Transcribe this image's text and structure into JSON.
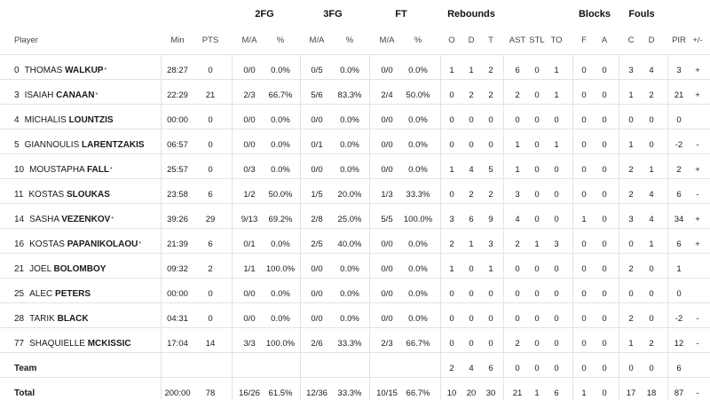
{
  "groups": [
    {
      "key": "g2fg",
      "label": "2FG"
    },
    {
      "key": "g3fg",
      "label": "3FG"
    },
    {
      "key": "gft",
      "label": "FT"
    },
    {
      "key": "greb",
      "label": "Rebounds"
    },
    {
      "key": "gblk",
      "label": "Blocks"
    },
    {
      "key": "gfoul",
      "label": "Fouls"
    }
  ],
  "columns": [
    "Player",
    "Min",
    "PTS",
    "M/A",
    "%",
    "M/A",
    "%",
    "M/A",
    "%",
    "O",
    "D",
    "T",
    "AST",
    "STL",
    "TO",
    "F",
    "A",
    "C",
    "D",
    "PIR",
    "+/-"
  ],
  "players": [
    {
      "num": "0",
      "first": "THOMAS",
      "last": "WALKUP",
      "starter": "*",
      "cells": [
        "28:27",
        "0",
        "0/0",
        "0.0%",
        "0/5",
        "0.0%",
        "0/0",
        "0.0%",
        "1",
        "1",
        "2",
        "6",
        "0",
        "1",
        "0",
        "0",
        "3",
        "4",
        "3",
        "+"
      ]
    },
    {
      "num": "3",
      "first": "ISAIAH",
      "last": "CANAAN",
      "starter": "*",
      "cells": [
        "22:29",
        "21",
        "2/3",
        "66.7%",
        "5/6",
        "83.3%",
        "2/4",
        "50.0%",
        "0",
        "2",
        "2",
        "2",
        "0",
        "1",
        "0",
        "0",
        "1",
        "2",
        "21",
        "+"
      ]
    },
    {
      "num": "4",
      "first": "MICHALIS",
      "last": "LOUNTZIS",
      "starter": "",
      "cells": [
        "00:00",
        "0",
        "0/0",
        "0.0%",
        "0/0",
        "0.0%",
        "0/0",
        "0.0%",
        "0",
        "0",
        "0",
        "0",
        "0",
        "0",
        "0",
        "0",
        "0",
        "0",
        "0",
        ""
      ]
    },
    {
      "num": "5",
      "first": "GIANNOULIS",
      "last": "LARENTZAKIS",
      "starter": "",
      "cells": [
        "06:57",
        "0",
        "0/0",
        "0.0%",
        "0/1",
        "0.0%",
        "0/0",
        "0.0%",
        "0",
        "0",
        "0",
        "1",
        "0",
        "1",
        "0",
        "0",
        "1",
        "0",
        "-2",
        "-"
      ]
    },
    {
      "num": "10",
      "first": "MOUSTAPHA",
      "last": "FALL",
      "starter": "*",
      "cells": [
        "25:57",
        "0",
        "0/3",
        "0.0%",
        "0/0",
        "0.0%",
        "0/0",
        "0.0%",
        "1",
        "4",
        "5",
        "1",
        "0",
        "0",
        "0",
        "0",
        "2",
        "1",
        "2",
        "+"
      ]
    },
    {
      "num": "11",
      "first": "KOSTAS",
      "last": "SLOUKAS",
      "starter": "",
      "cells": [
        "23:58",
        "6",
        "1/2",
        "50.0%",
        "1/5",
        "20.0%",
        "1/3",
        "33.3%",
        "0",
        "2",
        "2",
        "3",
        "0",
        "0",
        "0",
        "0",
        "2",
        "4",
        "6",
        "-"
      ]
    },
    {
      "num": "14",
      "first": "SASHA",
      "last": "VEZENKOV",
      "starter": "*",
      "cells": [
        "39:26",
        "29",
        "9/13",
        "69.2%",
        "2/8",
        "25.0%",
        "5/5",
        "100.0%",
        "3",
        "6",
        "9",
        "4",
        "0",
        "0",
        "1",
        "0",
        "3",
        "4",
        "34",
        "+"
      ]
    },
    {
      "num": "16",
      "first": "KOSTAS",
      "last": "PAPANIKOLAOU",
      "starter": "*",
      "cells": [
        "21:39",
        "6",
        "0/1",
        "0.0%",
        "2/5",
        "40.0%",
        "0/0",
        "0.0%",
        "2",
        "1",
        "3",
        "2",
        "1",
        "3",
        "0",
        "0",
        "0",
        "1",
        "6",
        "+"
      ]
    },
    {
      "num": "21",
      "first": "JOEL",
      "last": "BOLOMBOY",
      "starter": "",
      "cells": [
        "09:32",
        "2",
        "1/1",
        "100.0%",
        "0/0",
        "0.0%",
        "0/0",
        "0.0%",
        "1",
        "0",
        "1",
        "0",
        "0",
        "0",
        "0",
        "0",
        "2",
        "0",
        "1",
        ""
      ]
    },
    {
      "num": "25",
      "first": "ALEC",
      "last": "PETERS",
      "starter": "",
      "cells": [
        "00:00",
        "0",
        "0/0",
        "0.0%",
        "0/0",
        "0.0%",
        "0/0",
        "0.0%",
        "0",
        "0",
        "0",
        "0",
        "0",
        "0",
        "0",
        "0",
        "0",
        "0",
        "0",
        ""
      ]
    },
    {
      "num": "28",
      "first": "TARIK",
      "last": "BLACK",
      "starter": "",
      "cells": [
        "04:31",
        "0",
        "0/0",
        "0.0%",
        "0/0",
        "0.0%",
        "0/0",
        "0.0%",
        "0",
        "0",
        "0",
        "0",
        "0",
        "0",
        "0",
        "0",
        "2",
        "0",
        "-2",
        "-"
      ]
    },
    {
      "num": "77",
      "first": "SHAQUIELLE",
      "last": "MCKISSIC",
      "starter": "",
      "cells": [
        "17:04",
        "14",
        "3/3",
        "100.0%",
        "2/6",
        "33.3%",
        "2/3",
        "66.7%",
        "0",
        "0",
        "0",
        "2",
        "0",
        "0",
        "0",
        "0",
        "1",
        "2",
        "12",
        "-"
      ]
    }
  ],
  "team": {
    "label": "Team",
    "cells": [
      "",
      "",
      "",
      "",
      "",
      "",
      "",
      "",
      "2",
      "4",
      "6",
      "0",
      "0",
      "0",
      "0",
      "0",
      "0",
      "0",
      "6",
      ""
    ]
  },
  "total": {
    "label": "Total",
    "cells": [
      "200:00",
      "78",
      "16/26",
      "61.5%",
      "12/36",
      "33.3%",
      "10/15",
      "66.7%",
      "10",
      "20",
      "30",
      "21",
      "1",
      "6",
      "1",
      "0",
      "17",
      "18",
      "87",
      "-"
    ]
  }
}
